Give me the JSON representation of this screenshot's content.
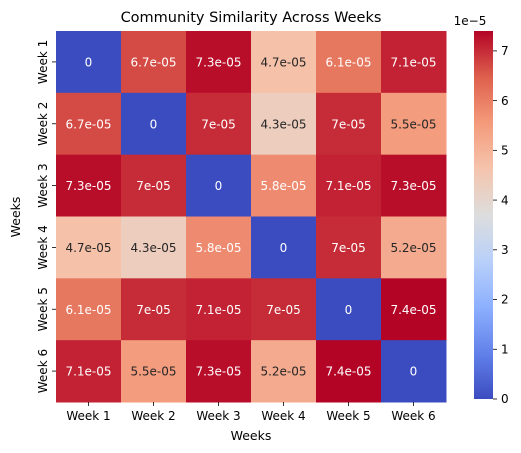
{
  "chart_data": {
    "type": "heatmap",
    "title": "Community Similarity Across Weeks",
    "xlabel": "Weeks",
    "ylabel": "Weeks",
    "x_categories": [
      "Week 1",
      "Week 2",
      "Week 3",
      "Week 4",
      "Week 5",
      "Week 6"
    ],
    "y_categories": [
      "Week 1",
      "Week 2",
      "Week 3",
      "Week 4",
      "Week 5",
      "Week 6"
    ],
    "values": [
      [
        0,
        6.7e-05,
        7.3e-05,
        4.7e-05,
        6.1e-05,
        7.1e-05
      ],
      [
        6.7e-05,
        0,
        7e-05,
        4.3e-05,
        7e-05,
        5.5e-05
      ],
      [
        7.3e-05,
        7e-05,
        0,
        5.8e-05,
        7.1e-05,
        7.3e-05
      ],
      [
        4.7e-05,
        4.3e-05,
        5.8e-05,
        0,
        7e-05,
        5.2e-05
      ],
      [
        6.1e-05,
        7e-05,
        7.1e-05,
        7e-05,
        0,
        7.4e-05
      ],
      [
        7.1e-05,
        5.5e-05,
        7.3e-05,
        5.2e-05,
        7.4e-05,
        0
      ]
    ],
    "cell_labels": [
      [
        "0",
        "6.7e-05",
        "7.3e-05",
        "4.7e-05",
        "6.1e-05",
        "7.1e-05"
      ],
      [
        "6.7e-05",
        "0",
        "7e-05",
        "4.3e-05",
        "7e-05",
        "5.5e-05"
      ],
      [
        "7.3e-05",
        "7e-05",
        "0",
        "5.8e-05",
        "7.1e-05",
        "7.3e-05"
      ],
      [
        "4.7e-05",
        "4.3e-05",
        "5.8e-05",
        "0",
        "7e-05",
        "5.2e-05"
      ],
      [
        "6.1e-05",
        "7e-05",
        "7.1e-05",
        "7e-05",
        "0",
        "7.4e-05"
      ],
      [
        "7.1e-05",
        "5.5e-05",
        "7.3e-05",
        "5.2e-05",
        "7.4e-05",
        "0"
      ]
    ],
    "colormap": "coolwarm",
    "color_range": [
      0,
      7.4e-05
    ],
    "colorbar": {
      "ticks": [
        0,
        1,
        2,
        3,
        4,
        5,
        6,
        7
      ],
      "tick_labels": [
        "0",
        "1",
        "2",
        "3",
        "4",
        "5",
        "6",
        "7"
      ],
      "multiplier_label": "1e−5"
    },
    "grid": false
  }
}
